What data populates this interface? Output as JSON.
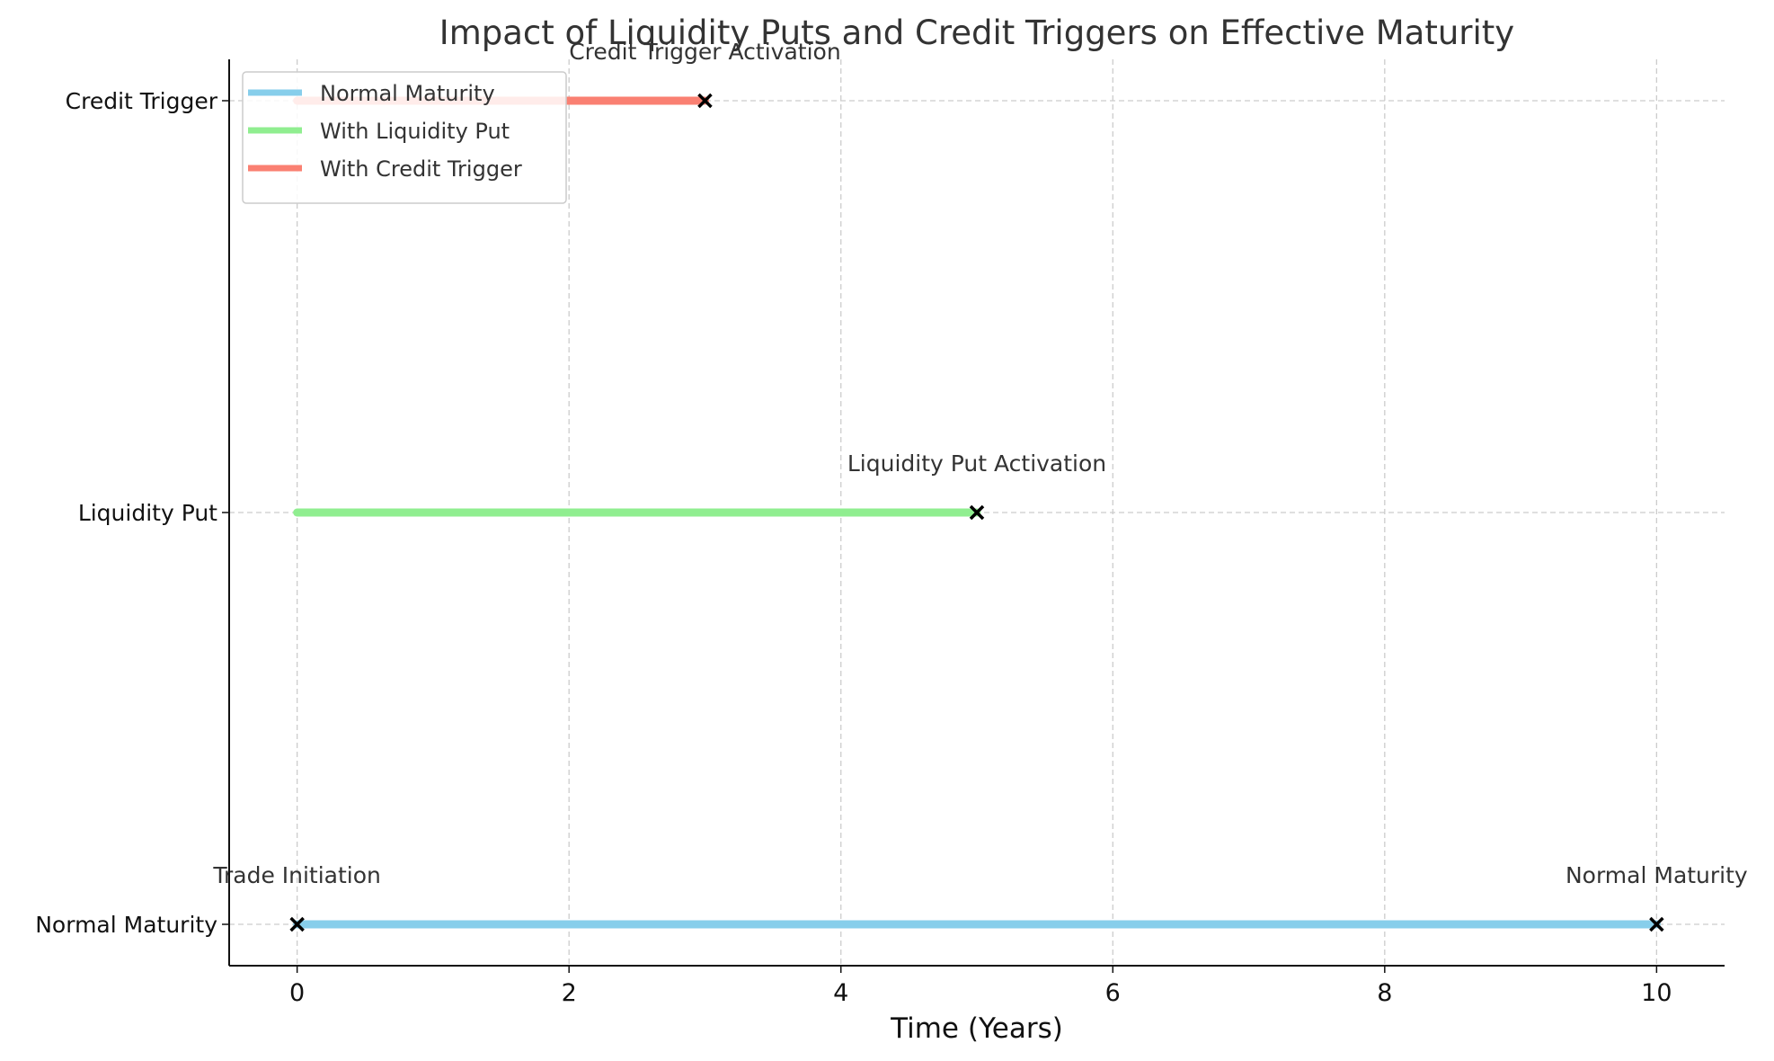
{
  "chart_data": {
    "type": "line",
    "title": "Impact of Liquidity Puts and Credit Triggers on Effective Maturity",
    "xlabel": "Time (Years)",
    "ylabel": "",
    "xlim": [
      -0.5,
      10.5
    ],
    "x_ticks": [
      0,
      2,
      4,
      6,
      8,
      10
    ],
    "x_tick_labels": [
      "0",
      "2",
      "4",
      "6",
      "8",
      "10"
    ],
    "categories": [
      "Normal Maturity",
      "Liquidity Put",
      "Credit Trigger"
    ],
    "grid": true,
    "legend_position": "top-left",
    "series": [
      {
        "name": "Normal Maturity",
        "category": "Normal Maturity",
        "x": [
          0,
          10
        ],
        "color": "#87CEEB"
      },
      {
        "name": "With Liquidity Put",
        "category": "Liquidity Put",
        "x": [
          0,
          5
        ],
        "color": "#90EE90"
      },
      {
        "name": "With Credit Trigger",
        "category": "Credit Trigger",
        "x": [
          0,
          3
        ],
        "color": "#FA8072"
      }
    ],
    "markers": [
      {
        "x": 0,
        "category": "Normal Maturity"
      },
      {
        "x": 10,
        "category": "Normal Maturity"
      },
      {
        "x": 5,
        "category": "Liquidity Put"
      },
      {
        "x": 3,
        "category": "Credit Trigger"
      }
    ],
    "annotations": [
      {
        "text": "Trade Initiation",
        "x": 0,
        "category": "Normal Maturity"
      },
      {
        "text": "Normal Maturity",
        "x": 10,
        "category": "Normal Maturity"
      },
      {
        "text": "Liquidity Put Activation",
        "x": 5,
        "category": "Liquidity Put"
      },
      {
        "text": "Credit Trigger Activation",
        "x": 3,
        "category": "Credit Trigger"
      }
    ]
  }
}
